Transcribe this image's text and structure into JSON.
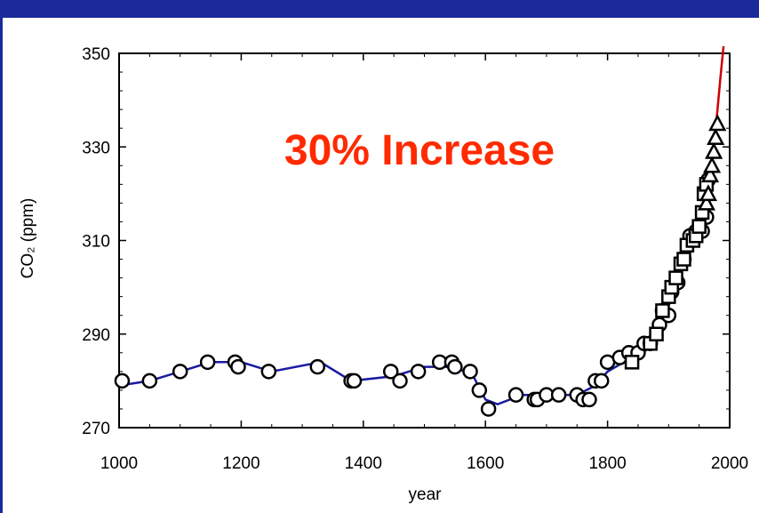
{
  "chart_data": {
    "type": "scatter",
    "xlabel": "year",
    "ylabel": "CO₂ (ppm)",
    "xlim": [
      1000,
      2000
    ],
    "ylim": [
      270,
      350
    ],
    "x_ticks": [
      1000,
      1200,
      1400,
      1600,
      1800,
      2000
    ],
    "y_ticks": [
      270,
      290,
      310,
      330,
      350
    ],
    "annotation": "30% Increase",
    "grid": false,
    "legend": "none",
    "colors": {
      "ice_core_line": "#1a1aa0",
      "instrumental_line": "#cc0000",
      "annotation": "#ff2a00",
      "frame": "#1a2a9a"
    },
    "series": [
      {
        "marker": "circle",
        "x": [
          1005,
          1050,
          1100,
          1145,
          1190,
          1195,
          1245,
          1325,
          1380,
          1385,
          1445,
          1460,
          1490,
          1525,
          1545,
          1550,
          1575,
          1590,
          1605,
          1650,
          1680,
          1685,
          1700,
          1720,
          1750,
          1760,
          1770,
          1780,
          1790,
          1800,
          1820,
          1835,
          1850,
          1860,
          1870,
          1885,
          1890,
          1900,
          1905,
          1915,
          1925,
          1935,
          1945,
          1955,
          1962,
          1965
        ],
        "y": [
          280,
          280,
          282,
          284,
          284,
          283,
          282,
          283,
          280,
          280,
          282,
          280,
          282,
          284,
          284,
          283,
          282,
          278,
          274,
          277,
          276,
          276,
          277,
          277,
          277,
          276,
          276,
          280,
          280,
          284,
          285,
          286,
          286,
          288,
          288,
          292,
          295,
          294,
          299,
          301,
          306,
          311,
          312,
          312,
          315,
          323
        ]
      },
      {
        "marker": "square",
        "x": [
          1840,
          1870,
          1880,
          1890,
          1900,
          1905,
          1912,
          1920,
          1925,
          1930,
          1940,
          1945,
          1950,
          1955,
          1958,
          1962
        ],
        "y": [
          284,
          288,
          290,
          295,
          298,
          300,
          302,
          305,
          306,
          309,
          310,
          311,
          313,
          316,
          320,
          322
        ]
      },
      {
        "marker": "triangle",
        "x": [
          1962,
          1965,
          1968,
          1971,
          1974,
          1977,
          1980
        ],
        "y": [
          318,
          320,
          324,
          326,
          329,
          332,
          335
        ]
      },
      {
        "marker": "line",
        "x": [
          1000,
          1050,
          1100,
          1150,
          1200,
          1250,
          1330,
          1380,
          1450,
          1500,
          1550,
          1580,
          1600,
          1620,
          1660,
          1700,
          1750,
          1780,
          1800,
          1840,
          1870,
          1900,
          1930,
          1950,
          1960,
          1965
        ],
        "y": [
          279,
          280,
          282,
          284,
          284,
          282,
          284,
          280,
          281,
          283,
          283,
          281,
          276,
          275,
          277,
          277,
          277,
          279,
          282,
          285,
          287,
          296,
          307,
          313,
          318,
          322
        ]
      },
      {
        "marker": "line",
        "x": [
          1958,
          1965,
          1970,
          1975,
          1980,
          1985,
          1990
        ],
        "y": [
          315,
          320,
          325,
          331,
          338,
          345,
          352
        ]
      }
    ]
  }
}
